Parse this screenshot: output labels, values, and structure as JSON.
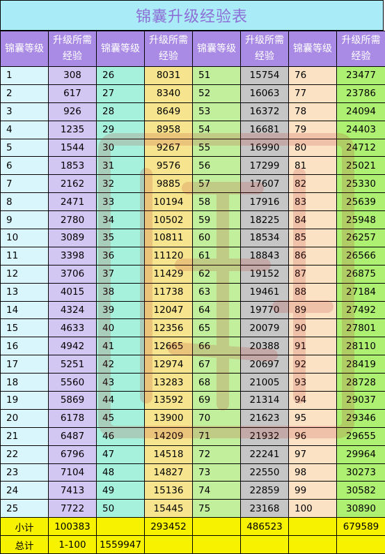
{
  "title": "锦囊升级经验表",
  "headers": [
    "锦囊等级",
    "升级所需经验",
    "锦囊等级",
    "升级所需经验",
    "锦囊等级",
    "升级所需经验",
    "锦囊等级",
    "升级所需经验"
  ],
  "rows": [
    [
      "1",
      "308",
      "26",
      "8031",
      "51",
      "15754",
      "76",
      "23477"
    ],
    [
      "2",
      "617",
      "27",
      "8340",
      "52",
      "16063",
      "77",
      "23786"
    ],
    [
      "3",
      "926",
      "28",
      "8649",
      "53",
      "16372",
      "78",
      "24094"
    ],
    [
      "4",
      "1235",
      "29",
      "8958",
      "54",
      "16681",
      "79",
      "24403"
    ],
    [
      "5",
      "1544",
      "30",
      "9267",
      "55",
      "16990",
      "80",
      "24712"
    ],
    [
      "6",
      "1853",
      "31",
      "9576",
      "56",
      "17299",
      "81",
      "25021"
    ],
    [
      "7",
      "2162",
      "32",
      "9885",
      "57",
      "17607",
      "82",
      "25330"
    ],
    [
      "8",
      "2471",
      "33",
      "10194",
      "58",
      "17916",
      "83",
      "25639"
    ],
    [
      "9",
      "2780",
      "34",
      "10502",
      "59",
      "18225",
      "84",
      "25948"
    ],
    [
      "10",
      "3089",
      "35",
      "10811",
      "60",
      "18534",
      "85",
      "26257"
    ],
    [
      "11",
      "3398",
      "36",
      "11120",
      "61",
      "18843",
      "86",
      "26566"
    ],
    [
      "12",
      "3706",
      "37",
      "11429",
      "62",
      "19152",
      "87",
      "26875"
    ],
    [
      "13",
      "4015",
      "38",
      "11738",
      "63",
      "19461",
      "88",
      "27184"
    ],
    [
      "14",
      "4324",
      "39",
      "12047",
      "64",
      "19770",
      "89",
      "27492"
    ],
    [
      "15",
      "4633",
      "40",
      "12356",
      "65",
      "20079",
      "90",
      "27801"
    ],
    [
      "16",
      "4942",
      "41",
      "12665",
      "66",
      "20388",
      "91",
      "28110"
    ],
    [
      "17",
      "5251",
      "42",
      "12974",
      "67",
      "20697",
      "92",
      "28419"
    ],
    [
      "18",
      "5560",
      "43",
      "13283",
      "68",
      "21005",
      "93",
      "28728"
    ],
    [
      "19",
      "5869",
      "44",
      "13592",
      "69",
      "21314",
      "94",
      "29037"
    ],
    [
      "20",
      "6178",
      "45",
      "13900",
      "70",
      "21623",
      "95",
      "29346"
    ],
    [
      "21",
      "6487",
      "46",
      "14209",
      "71",
      "21932",
      "96",
      "29655"
    ],
    [
      "22",
      "6796",
      "47",
      "14518",
      "72",
      "22241",
      "97",
      "29964"
    ],
    [
      "23",
      "7104",
      "48",
      "14827",
      "73",
      "22550",
      "98",
      "30273"
    ],
    [
      "24",
      "7413",
      "49",
      "15136",
      "74",
      "22859",
      "99",
      "30582"
    ],
    [
      "25",
      "7722",
      "50",
      "15445",
      "75",
      "23168",
      "100",
      "30890"
    ]
  ],
  "subtotal": {
    "label": "小计",
    "values": [
      "100383",
      "",
      "293452",
      "",
      "486523",
      "",
      "679589"
    ]
  },
  "total": {
    "label": "总计",
    "range": "1-100",
    "value": "1559947"
  },
  "colors": {
    "title_bg": "#a9ecf7",
    "title_text": "#8e6fd6",
    "header_bg": "#a98be6",
    "subtotal_bg": "#f6f200",
    "col_level_1": "#d8f6fb",
    "col_exp_1": "#d2c6f3",
    "col_level_2": "#a6f1dc",
    "col_exp_2": "#f6e58e",
    "col_level_3": "#c2ef9b",
    "col_exp_3": "#c6c6c6",
    "col_level_4": "#fbe2c5",
    "col_exp_4": "#aef071"
  },
  "watermark": "seal-watermark-icon"
}
